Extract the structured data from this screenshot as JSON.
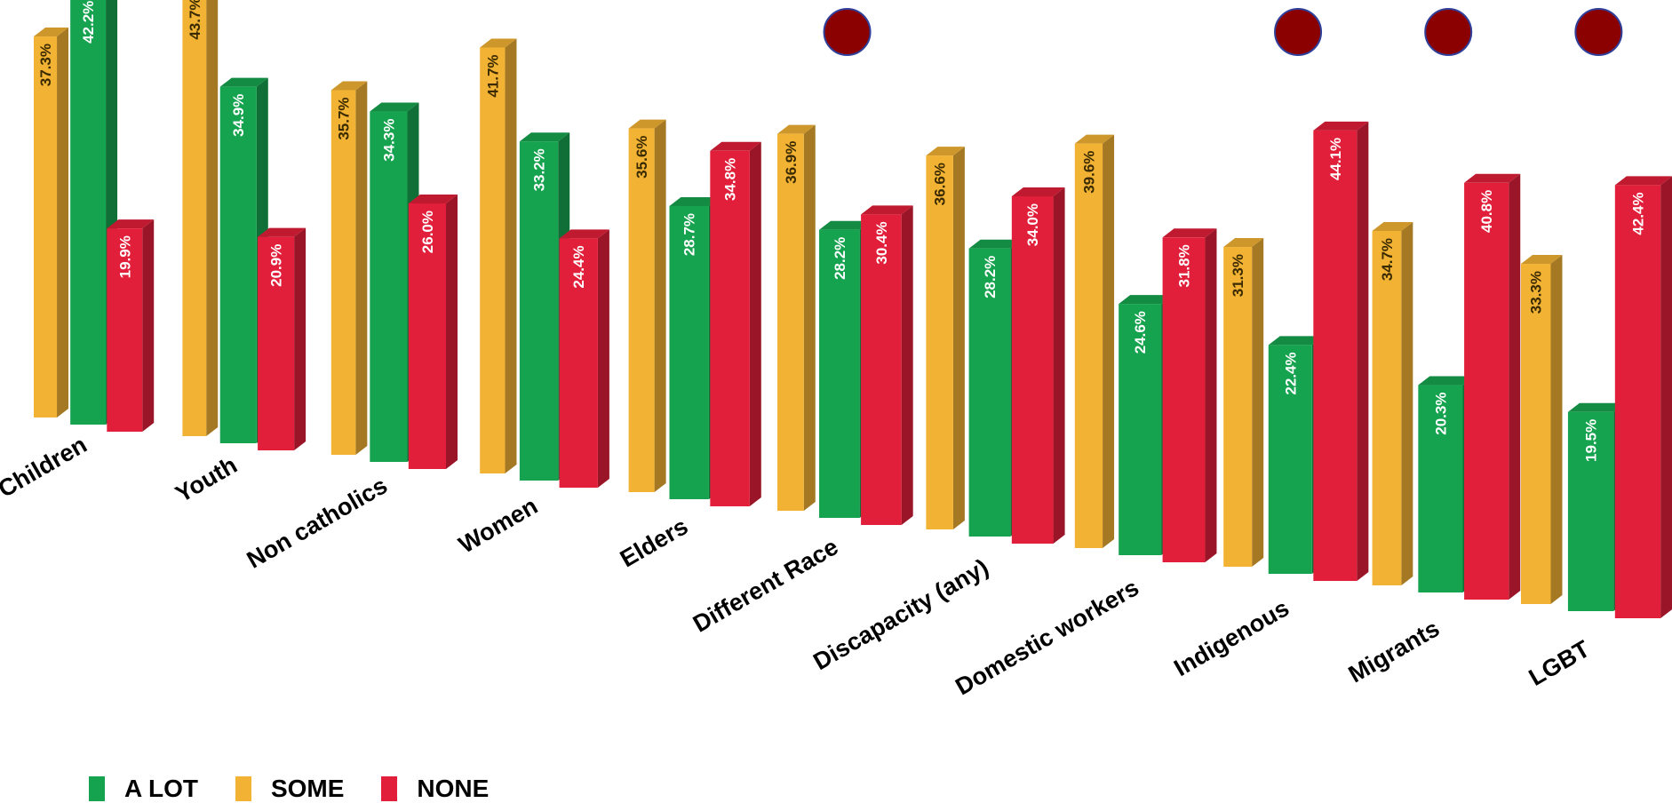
{
  "chart_data": {
    "type": "bar",
    "categories": [
      "Children",
      "Youth",
      "Non catholics",
      "Women",
      "Elders",
      "Different Race",
      "Discapacity (any)",
      "Domestic workers",
      "Indigenous",
      "Migrants",
      "LGBT"
    ],
    "series": [
      {
        "name": "SOME",
        "color": "#F2B233",
        "values": [
          37.3,
          43.7,
          35.7,
          41.7,
          35.6,
          36.9,
          36.6,
          39.6,
          31.3,
          34.7,
          33.3
        ],
        "labels": [
          "37.3%",
          "43.7%",
          "35.7%",
          "41.7%",
          "35.6%",
          "36.9%",
          "36.6%",
          "39.6%",
          "31.3%",
          "34.7%",
          "33.3%"
        ]
      },
      {
        "name": "A LOT",
        "color": "#16A34F",
        "values": [
          42.2,
          34.9,
          34.3,
          33.2,
          28.7,
          28.2,
          28.2,
          24.6,
          22.4,
          20.3,
          19.5
        ],
        "labels": [
          "42.2%",
          "34.9%",
          "34.3%",
          "33.2%",
          "28.7%",
          "28.2%",
          "28.2%",
          "24.6%",
          "22.4%",
          "20.3%",
          "19.5%"
        ]
      },
      {
        "name": "NONE",
        "color": "#E21F3A",
        "values": [
          19.9,
          20.9,
          26.0,
          24.4,
          34.8,
          30.4,
          34.0,
          31.8,
          44.1,
          40.8,
          42.4
        ],
        "labels": [
          "19.9%",
          "20.9%",
          "26.0%",
          "24.4%",
          "34.8%",
          "30.4%",
          "34.0%",
          "31.8%",
          "44.1%",
          "40.8%",
          "42.4%"
        ]
      }
    ],
    "marker_color": "#8B0000",
    "marked_categories": [
      "Different Race",
      "Indigenous",
      "Migrants",
      "LGBT"
    ],
    "legend": {
      "position": "bottom-left",
      "items": [
        {
          "label": "A LOT",
          "color": "#16A34F"
        },
        {
          "label": "SOME",
          "color": "#F2B233"
        },
        {
          "label": "NONE",
          "color": "#E21F3A"
        }
      ]
    },
    "axes": {
      "x_axis_visible": false,
      "y_axis_visible": false,
      "grid": false,
      "ylim": [
        0,
        45
      ]
    }
  }
}
